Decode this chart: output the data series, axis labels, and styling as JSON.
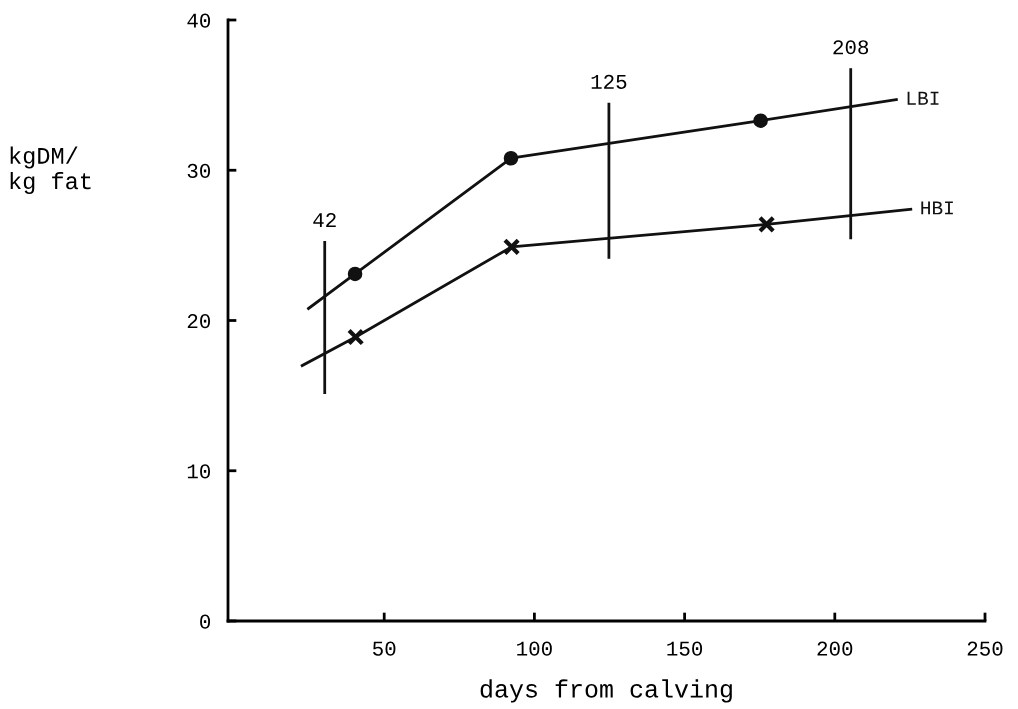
{
  "chart_data": {
    "type": "line",
    "xlabel": "days from calving",
    "ylabel": "kgDM/\nkg fat",
    "xlim": [
      -2,
      250
    ],
    "xticks": [
      50,
      100,
      150,
      200,
      250
    ],
    "ylim": [
      0,
      40
    ],
    "yticks": [
      0,
      10,
      20,
      30,
      40
    ],
    "grid": false,
    "line_style": "solid",
    "series": [
      {
        "name": "LBI",
        "color": "#111111",
        "marker": "none",
        "x": [
          24.8,
          40.3,
          92.2,
          175.3,
          220.5
        ],
        "values": [
          20.8,
          23.1,
          30.8,
          33.3,
          34.7
        ]
      },
      {
        "type": "scatter",
        "color": "#111111",
        "marker": "circle",
        "x": [
          40.3,
          92.2,
          175.3
        ],
        "values": [
          23.1,
          30.8,
          33.3
        ]
      },
      {
        "name": "HBI",
        "color": "#111111",
        "marker": "none",
        "x": [
          22.7,
          40.5,
          92.4,
          177.3,
          225.3
        ],
        "values": [
          17.0,
          18.9,
          24.9,
          26.4,
          27.4
        ]
      },
      {
        "type": "scatter",
        "color": "#111111",
        "marker": "cross",
        "x": [
          40.5,
          92.4,
          177.3
        ],
        "values": [
          18.9,
          24.9,
          26.4
        ]
      },
      {
        "color": "#111111",
        "marker": "none",
        "x": [
          30.2,
          30.2
        ],
        "values": [
          15.2,
          25.2
        ]
      },
      {
        "color": "#111111",
        "marker": "none",
        "x": [
          124.8,
          124.8
        ],
        "values": [
          24.2,
          34.4
        ]
      },
      {
        "color": "#111111",
        "marker": "none",
        "x": [
          205.3,
          205.3
        ],
        "values": [
          25.5,
          36.7
        ]
      }
    ],
    "annotations": [
      {
        "text": "42",
        "x": 30.2,
        "y": 25.2
      },
      {
        "text": "125",
        "x": 124.8,
        "y": 34.4
      },
      {
        "text": "208",
        "x": 205.3,
        "y": 36.7
      }
    ]
  }
}
